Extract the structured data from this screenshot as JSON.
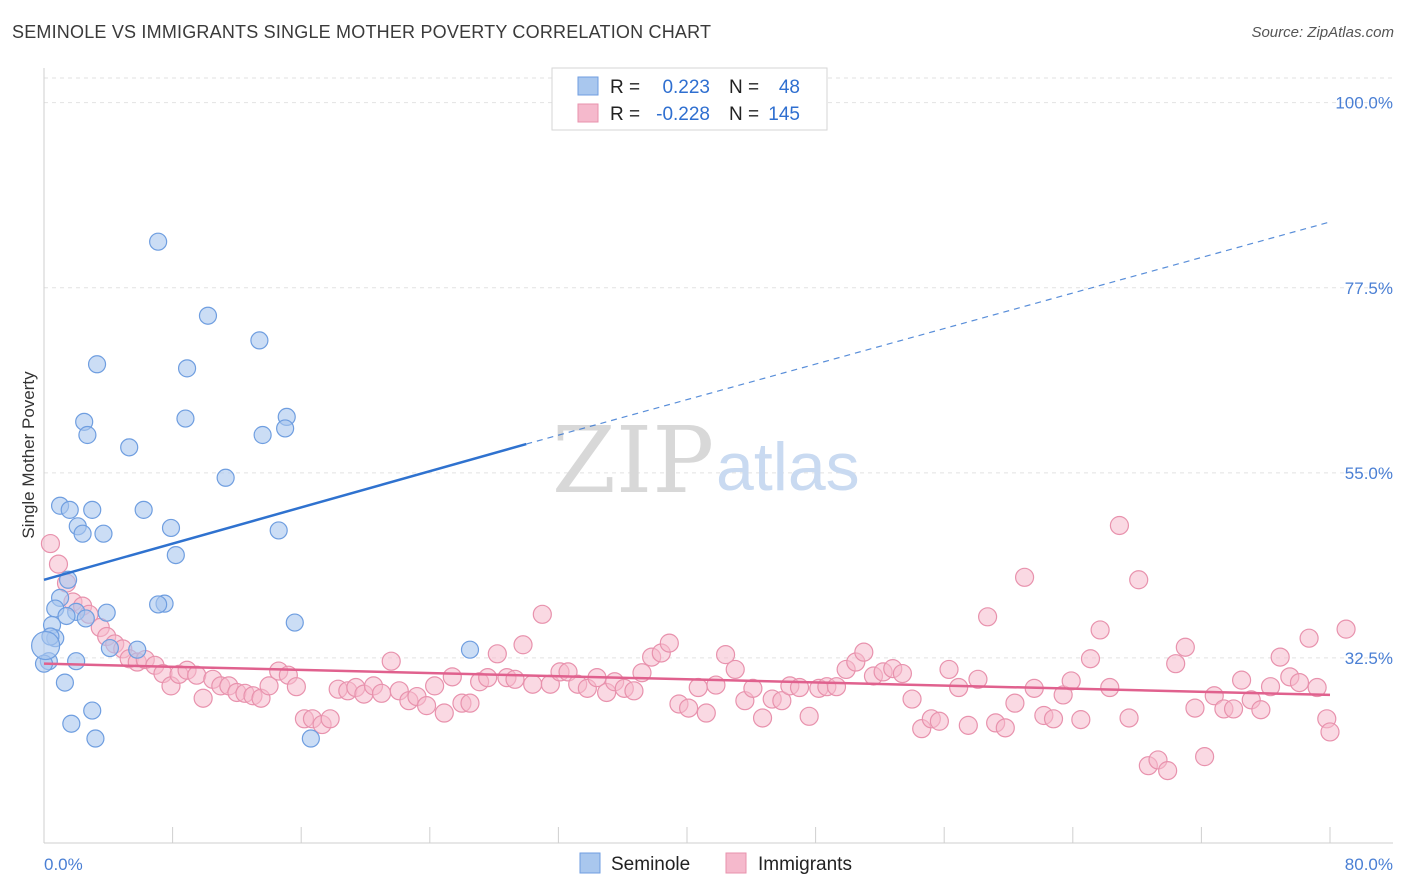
{
  "title": "SEMINOLE VS IMMIGRANTS SINGLE MOTHER POVERTY CORRELATION CHART",
  "source": "Source: ZipAtlas.com",
  "watermark": {
    "zip": "ZIP",
    "atlas": "atlas"
  },
  "legend": {
    "r_label": "R =",
    "n_label": "N =",
    "rows": [
      {
        "r": "0.223",
        "n": "48"
      },
      {
        "r": "-0.228",
        "n": "145"
      }
    ]
  },
  "chart_data": {
    "type": "scatter",
    "xlabel": "",
    "ylabel": "Single Mother Poverty",
    "xlim": [
      0,
      80
    ],
    "ylim": [
      10,
      103
    ],
    "x_tick_labels": {
      "left": "0.0%",
      "right": "80.0%"
    },
    "y_ticks": [
      {
        "value": 100,
        "label": "100.0%"
      },
      {
        "value": 77.5,
        "label": "77.5%"
      },
      {
        "value": 55,
        "label": "55.0%"
      },
      {
        "value": 32.5,
        "label": "32.5%"
      }
    ],
    "grid": "horizontal-dashed",
    "legend_position": "top-center",
    "colors": {
      "seminole_fill": "#a9c7ee",
      "seminole_stroke": "#6f9ee0",
      "seminole_line": "#2f72cf",
      "immigrants_fill": "#f5b9cc",
      "immigrants_stroke": "#e892ad",
      "immigrants_line": "#e0618e"
    },
    "series": [
      {
        "name": "Seminole",
        "trend": {
          "x0": 0,
          "y0": 42.0,
          "x1": 30,
          "y1": 58.5,
          "dashed_to_x": 80,
          "dashed_to_y": 85.5
        },
        "points": [
          [
            7.1,
            83.1
          ],
          [
            10.2,
            74.1
          ],
          [
            13.4,
            71.1
          ],
          [
            3.3,
            68.2
          ],
          [
            8.9,
            67.7
          ],
          [
            2.5,
            61.2
          ],
          [
            8.8,
            61.6
          ],
          [
            15.1,
            61.8
          ],
          [
            15.0,
            60.4
          ],
          [
            13.6,
            59.6
          ],
          [
            2.7,
            59.6
          ],
          [
            5.3,
            58.1
          ],
          [
            11.3,
            54.4
          ],
          [
            1.0,
            51.0
          ],
          [
            1.6,
            50.5
          ],
          [
            3.0,
            50.5
          ],
          [
            6.2,
            50.5
          ],
          [
            2.1,
            48.5
          ],
          [
            7.9,
            48.3
          ],
          [
            14.6,
            48.0
          ],
          [
            2.4,
            47.6
          ],
          [
            3.7,
            47.6
          ],
          [
            8.2,
            45.0
          ],
          [
            1.5,
            42.0
          ],
          [
            1.0,
            39.8
          ],
          [
            7.5,
            39.1
          ],
          [
            7.1,
            39.0
          ],
          [
            0.7,
            38.5
          ],
          [
            2.0,
            38.1
          ],
          [
            1.4,
            37.6
          ],
          [
            3.9,
            38.0
          ],
          [
            15.6,
            36.8
          ],
          [
            0.5,
            36.5
          ],
          [
            2.6,
            37.3
          ],
          [
            0.7,
            34.9
          ],
          [
            0.4,
            35.1
          ],
          [
            4.1,
            33.7
          ],
          [
            5.8,
            33.5
          ],
          [
            26.5,
            33.5
          ],
          [
            0.3,
            32.1
          ],
          [
            2.0,
            32.1
          ],
          [
            0.0,
            31.8
          ],
          [
            1.3,
            29.5
          ],
          [
            3.0,
            26.1
          ],
          [
            1.7,
            24.5
          ],
          [
            3.2,
            22.7
          ],
          [
            16.6,
            22.7
          ],
          [
            0.1,
            34.0
          ]
        ]
      },
      {
        "name": "Immigrants",
        "trend": {
          "x0": 0,
          "y0": 31.8,
          "x1": 80,
          "y1": 28.0
        },
        "points": [
          [
            0.4,
            46.4
          ],
          [
            0.9,
            43.9
          ],
          [
            1.4,
            41.6
          ],
          [
            1.8,
            39.3
          ],
          [
            2.4,
            38.8
          ],
          [
            2.8,
            37.8
          ],
          [
            3.5,
            36.2
          ],
          [
            3.9,
            35.1
          ],
          [
            4.4,
            34.2
          ],
          [
            4.9,
            33.6
          ],
          [
            5.3,
            32.4
          ],
          [
            5.8,
            32.0
          ],
          [
            6.3,
            32.3
          ],
          [
            6.9,
            31.6
          ],
          [
            7.4,
            30.6
          ],
          [
            7.9,
            29.1
          ],
          [
            8.4,
            30.5
          ],
          [
            8.9,
            31.0
          ],
          [
            9.5,
            30.4
          ],
          [
            9.9,
            27.6
          ],
          [
            10.5,
            29.9
          ],
          [
            11.0,
            29.1
          ],
          [
            11.5,
            29.1
          ],
          [
            12.0,
            28.3
          ],
          [
            12.5,
            28.2
          ],
          [
            13.0,
            27.9
          ],
          [
            13.5,
            27.6
          ],
          [
            14.0,
            29.1
          ],
          [
            14.6,
            30.9
          ],
          [
            15.2,
            30.4
          ],
          [
            15.7,
            29.0
          ],
          [
            16.2,
            25.1
          ],
          [
            16.7,
            25.1
          ],
          [
            17.3,
            24.4
          ],
          [
            17.8,
            25.1
          ],
          [
            18.3,
            28.7
          ],
          [
            18.9,
            28.5
          ],
          [
            19.4,
            28.9
          ],
          [
            19.9,
            28.1
          ],
          [
            20.5,
            29.1
          ],
          [
            21.0,
            28.2
          ],
          [
            21.6,
            32.1
          ],
          [
            22.1,
            28.5
          ],
          [
            22.7,
            27.3
          ],
          [
            23.2,
            27.8
          ],
          [
            23.8,
            26.7
          ],
          [
            24.3,
            29.1
          ],
          [
            24.9,
            25.8
          ],
          [
            25.4,
            30.2
          ],
          [
            26.0,
            27.0
          ],
          [
            26.5,
            27.0
          ],
          [
            27.1,
            29.6
          ],
          [
            27.6,
            30.1
          ],
          [
            28.2,
            33.0
          ],
          [
            28.8,
            30.1
          ],
          [
            29.3,
            29.9
          ],
          [
            29.8,
            34.1
          ],
          [
            30.4,
            29.3
          ],
          [
            31.0,
            37.8
          ],
          [
            31.5,
            29.3
          ],
          [
            32.1,
            30.8
          ],
          [
            32.6,
            30.8
          ],
          [
            33.2,
            29.3
          ],
          [
            33.8,
            28.8
          ],
          [
            34.4,
            30.1
          ],
          [
            35.0,
            28.3
          ],
          [
            35.5,
            29.6
          ],
          [
            36.1,
            28.8
          ],
          [
            36.7,
            28.5
          ],
          [
            37.2,
            30.7
          ],
          [
            37.8,
            32.6
          ],
          [
            38.4,
            33.1
          ],
          [
            38.9,
            34.3
          ],
          [
            39.5,
            26.9
          ],
          [
            40.1,
            26.4
          ],
          [
            40.7,
            28.9
          ],
          [
            41.2,
            25.8
          ],
          [
            41.8,
            29.2
          ],
          [
            42.4,
            32.9
          ],
          [
            43.0,
            31.1
          ],
          [
            43.6,
            27.3
          ],
          [
            44.1,
            28.8
          ],
          [
            44.7,
            25.2
          ],
          [
            45.3,
            27.5
          ],
          [
            45.9,
            27.3
          ],
          [
            46.4,
            29.1
          ],
          [
            47.0,
            28.9
          ],
          [
            47.6,
            25.4
          ],
          [
            48.2,
            28.8
          ],
          [
            48.7,
            29.0
          ],
          [
            49.3,
            29.0
          ],
          [
            49.9,
            31.1
          ],
          [
            50.5,
            32.0
          ],
          [
            51.0,
            33.2
          ],
          [
            51.6,
            30.3
          ],
          [
            52.2,
            30.8
          ],
          [
            52.8,
            31.2
          ],
          [
            53.4,
            30.6
          ],
          [
            54.0,
            27.5
          ],
          [
            54.6,
            23.9
          ],
          [
            55.2,
            25.1
          ],
          [
            55.7,
            24.8
          ],
          [
            56.3,
            31.1
          ],
          [
            56.9,
            28.9
          ],
          [
            57.5,
            24.3
          ],
          [
            58.1,
            29.9
          ],
          [
            58.7,
            37.5
          ],
          [
            59.2,
            24.6
          ],
          [
            59.8,
            24.0
          ],
          [
            60.4,
            27.0
          ],
          [
            61.0,
            42.3
          ],
          [
            61.6,
            28.8
          ],
          [
            62.2,
            25.5
          ],
          [
            62.8,
            25.1
          ],
          [
            63.4,
            28.0
          ],
          [
            63.9,
            29.7
          ],
          [
            64.5,
            25.0
          ],
          [
            65.1,
            32.4
          ],
          [
            65.7,
            35.9
          ],
          [
            66.3,
            28.9
          ],
          [
            66.9,
            48.6
          ],
          [
            67.5,
            25.2
          ],
          [
            68.1,
            42.0
          ],
          [
            68.7,
            19.4
          ],
          [
            69.3,
            20.1
          ],
          [
            69.9,
            18.8
          ],
          [
            70.4,
            31.8
          ],
          [
            71.0,
            33.8
          ],
          [
            71.6,
            26.4
          ],
          [
            72.2,
            20.5
          ],
          [
            72.8,
            27.9
          ],
          [
            73.4,
            26.3
          ],
          [
            74.0,
            26.3
          ],
          [
            74.5,
            29.8
          ],
          [
            75.1,
            27.4
          ],
          [
            75.7,
            26.2
          ],
          [
            76.3,
            29.0
          ],
          [
            76.9,
            32.6
          ],
          [
            77.5,
            30.2
          ],
          [
            78.1,
            29.5
          ],
          [
            78.7,
            34.9
          ],
          [
            79.2,
            28.9
          ],
          [
            79.8,
            25.1
          ],
          [
            80.0,
            23.5
          ],
          [
            81.0,
            36.0
          ]
        ]
      }
    ]
  },
  "bottom_legend": [
    {
      "label": "Seminole"
    },
    {
      "label": "Immigrants"
    }
  ]
}
